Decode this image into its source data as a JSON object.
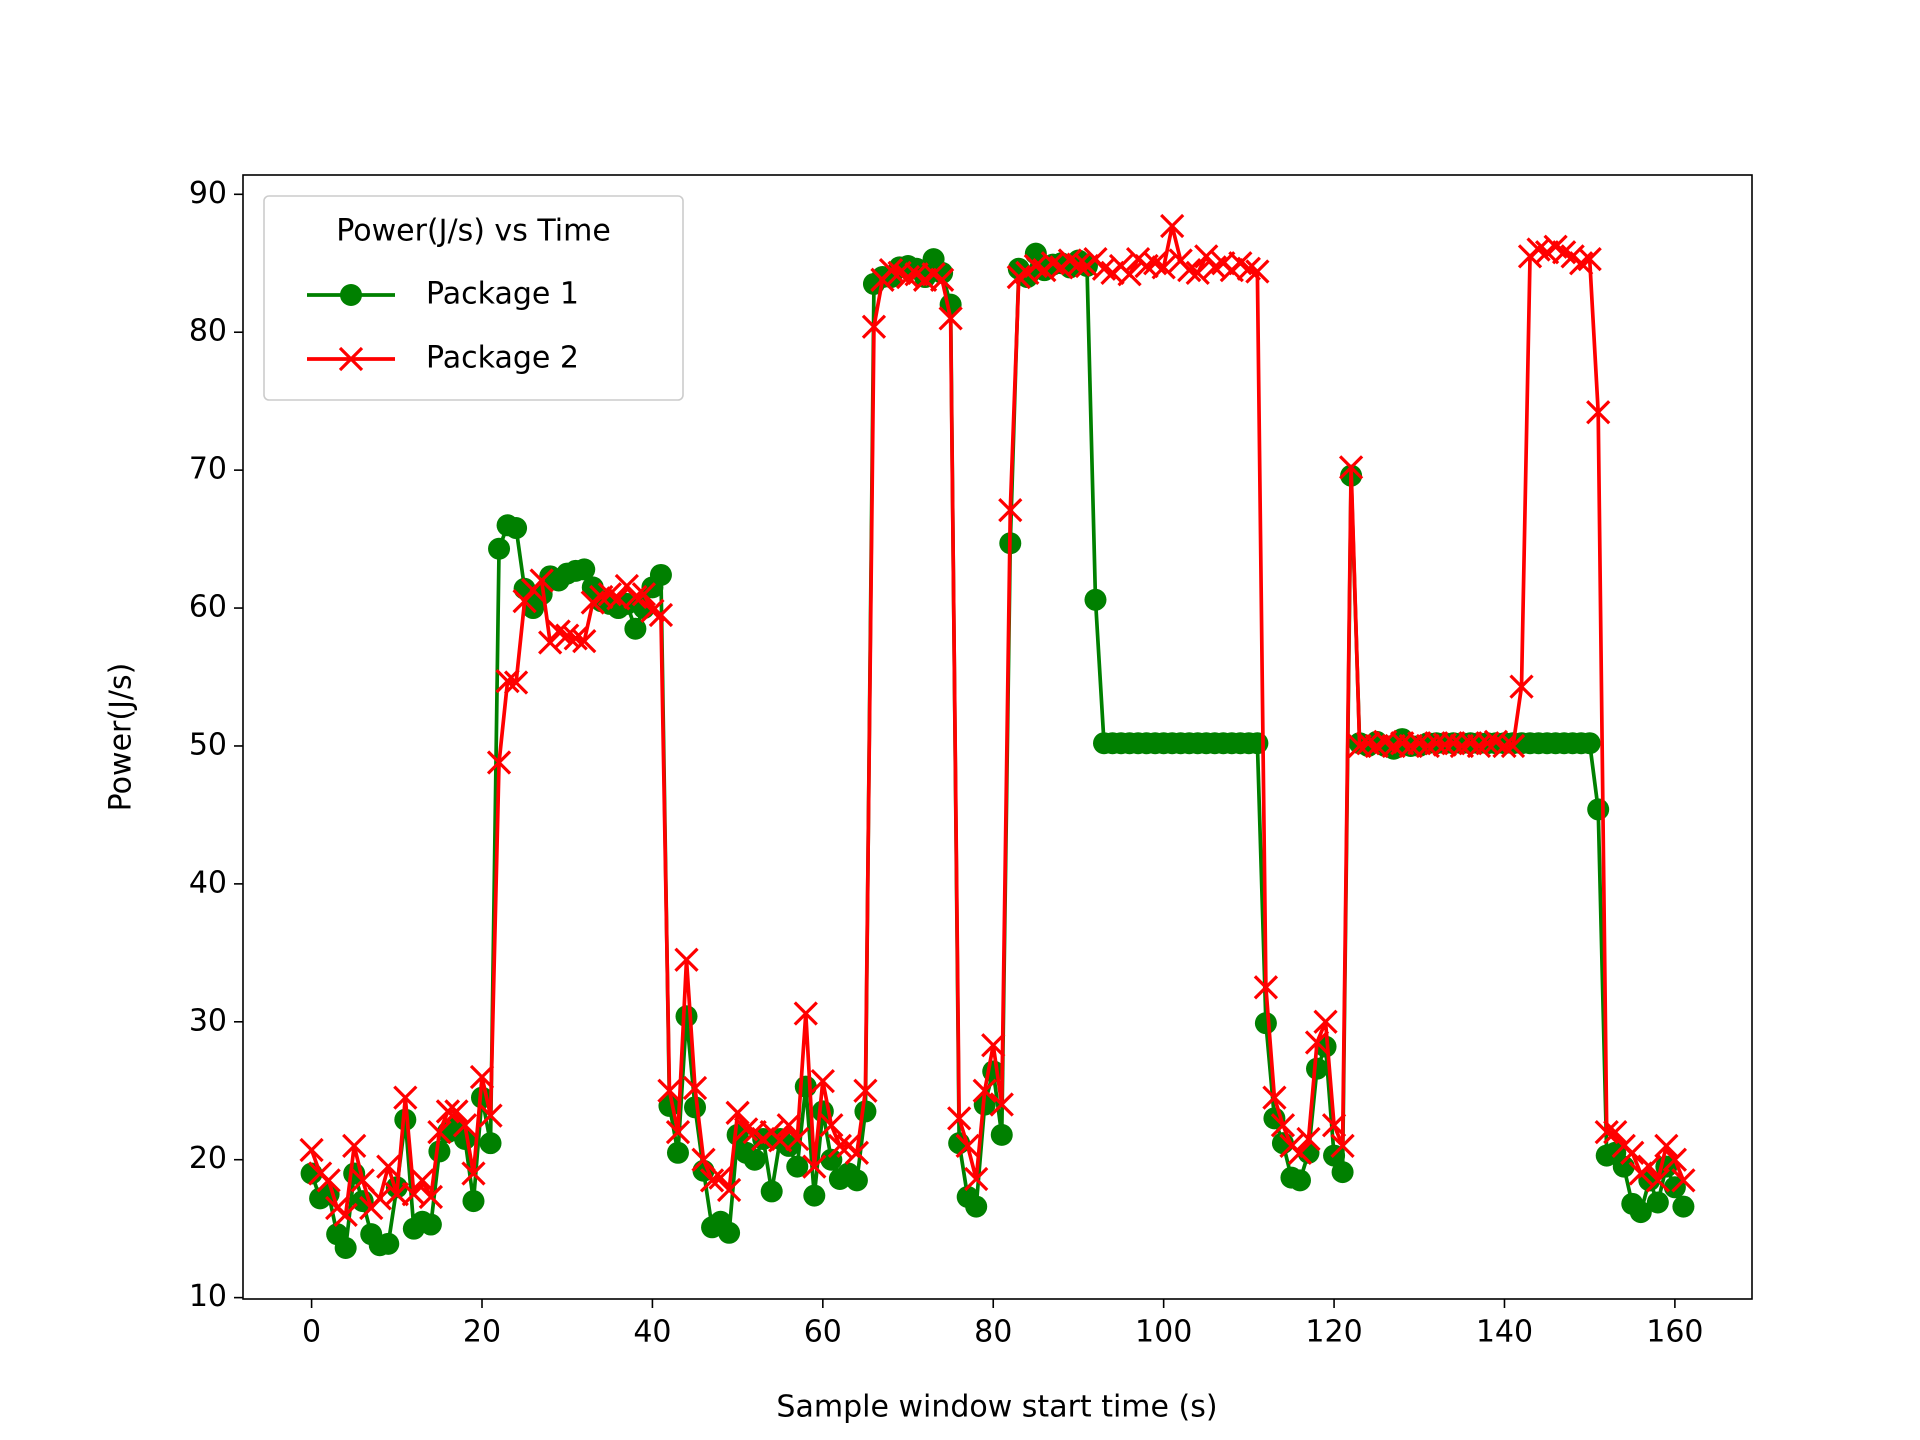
{
  "chart_data": {
    "type": "line",
    "xlabel": "Sample window start time (s)",
    "ylabel": "Power(J/s)",
    "legend_title": "Power(J/s) vs Time",
    "legend": "upper left",
    "xlim": [
      -8.05,
      169.05
    ],
    "ylim": [
      9.9,
      91.4
    ],
    "xticks": [
      0,
      20,
      40,
      60,
      80,
      100,
      120,
      140,
      160
    ],
    "yticks": [
      10,
      20,
      30,
      40,
      50,
      60,
      70,
      80,
      90
    ],
    "x": [
      0,
      1,
      2,
      3,
      4,
      5,
      6,
      7,
      8,
      9,
      10,
      11,
      12,
      13,
      14,
      15,
      16,
      17,
      18,
      19,
      20,
      21,
      22,
      23,
      24,
      25,
      26,
      27,
      28,
      29,
      30,
      31,
      32,
      33,
      34,
      35,
      36,
      37,
      38,
      39,
      40,
      41,
      42,
      43,
      44,
      45,
      46,
      47,
      48,
      49,
      50,
      51,
      52,
      53,
      54,
      55,
      56,
      57,
      58,
      59,
      60,
      61,
      62,
      63,
      64,
      65,
      66,
      67,
      68,
      69,
      70,
      71,
      72,
      73,
      74,
      75,
      76,
      77,
      78,
      79,
      80,
      81,
      82,
      83,
      84,
      85,
      86,
      87,
      88,
      89,
      90,
      91,
      92,
      93,
      94,
      95,
      96,
      97,
      98,
      99,
      100,
      101,
      102,
      103,
      104,
      105,
      106,
      107,
      108,
      109,
      110,
      111,
      112,
      113,
      114,
      115,
      116,
      117,
      118,
      119,
      120,
      121,
      122,
      123,
      124,
      125,
      126,
      127,
      128,
      129,
      130,
      131,
      132,
      133,
      134,
      135,
      136,
      137,
      138,
      139,
      140,
      141,
      142,
      143,
      144,
      145,
      146,
      147,
      148,
      149,
      150,
      151,
      152,
      153,
      154,
      155,
      156,
      157,
      158,
      159,
      160,
      161
    ],
    "series": [
      {
        "name": "Package 1",
        "color": "#008000",
        "marker": "circle",
        "values": [
          19,
          17.2,
          17.5,
          14.6,
          13.6,
          19,
          17,
          14.6,
          13.8,
          13.9,
          18,
          22.9,
          15,
          15.5,
          15.3,
          20.6,
          22,
          22.5,
          21.5,
          17,
          24.5,
          21.2,
          64.3,
          66,
          65.8,
          61.4,
          60,
          61,
          62.3,
          62,
          62.5,
          62.7,
          62.8,
          61.5,
          60.5,
          60.3,
          60,
          60.3,
          58.5,
          60,
          61.5,
          62.4,
          23.9,
          20.5,
          30.4,
          23.8,
          19.2,
          15.1,
          15.5,
          14.7,
          21.8,
          20.5,
          20,
          21.5,
          17.7,
          21.5,
          21,
          19.5,
          25.3,
          17.4,
          23.5,
          20,
          18.6,
          19,
          18.5,
          23.5,
          83.5,
          84,
          84,
          84.7,
          84.8,
          84.6,
          84,
          85.3,
          84.3,
          82,
          21.2,
          17.3,
          16.6,
          24,
          26.4,
          21.8,
          64.7,
          84.6,
          84,
          85.7,
          84.5,
          84.9,
          85,
          84.7,
          85.2,
          84.8,
          60.6,
          50.2,
          50.2,
          50.2,
          50.2,
          50.2,
          50.2,
          50.2,
          50.2,
          50.2,
          50.2,
          50.2,
          50.2,
          50.2,
          50.2,
          50.2,
          50.2,
          50.2,
          50.2,
          50.2,
          29.9,
          23,
          21.2,
          18.7,
          18.5,
          20.5,
          26.6,
          28.2,
          20.3,
          19.1,
          69.6,
          50.2,
          50,
          50.3,
          50,
          49.8,
          50.5,
          50,
          50,
          50.2,
          50.2,
          50.2,
          50.2,
          50.2,
          50.2,
          50.2,
          50.2,
          50.2,
          50.2,
          50.2,
          50.2,
          50.2,
          50.2,
          50.2,
          50.2,
          50.2,
          50.2,
          50.2,
          50.2,
          45.4,
          20.3,
          20.5,
          19.5,
          16.8,
          16.2,
          18.5,
          16.9,
          19.5,
          18,
          16.6
        ]
      },
      {
        "name": "Package 2",
        "color": "#ff0000",
        "marker": "x",
        "values": [
          20.7,
          19,
          18.5,
          16.5,
          16,
          21,
          18.5,
          16.5,
          17.2,
          19.5,
          17.5,
          24.5,
          17.5,
          18.5,
          17.3,
          22,
          23.5,
          23.5,
          22.5,
          19,
          26,
          23.2,
          48.8,
          54.7,
          54.6,
          60.5,
          61.3,
          62,
          57.5,
          58.3,
          58,
          57.8,
          57.6,
          60.4,
          60.8,
          61,
          60.7,
          61.6,
          60.8,
          61,
          59.8,
          59.5,
          25,
          22,
          34.5,
          25.2,
          20,
          18.5,
          18.7,
          17.8,
          23.4,
          22.2,
          22,
          21.5,
          22,
          21.4,
          22.5,
          21.5,
          30.6,
          19.5,
          25.7,
          22.5,
          21,
          21,
          20.5,
          25,
          80.4,
          83.8,
          84.5,
          84.3,
          84,
          84.2,
          83.8,
          84.2,
          83.8,
          81,
          23,
          21,
          18.6,
          25,
          28.3,
          24,
          67.1,
          84,
          84.3,
          84.8,
          84.5,
          85,
          84.7,
          85.2,
          84.9,
          84.8,
          85.3,
          84.6,
          84.3,
          84.8,
          84.2,
          85.3,
          84.8,
          85,
          84.7,
          87.7,
          85.2,
          84.5,
          84.3,
          85.5,
          84.7,
          85,
          84.5,
          85,
          84.6,
          84.4,
          32.5,
          24.5,
          22.5,
          21,
          20.5,
          21.5,
          28.5,
          30,
          22.5,
          21,
          70.2,
          50,
          50.2,
          50,
          50.3,
          50,
          50.2,
          50,
          50.2,
          50,
          50.2,
          50.1,
          50.2,
          50,
          50.2,
          50,
          50.2,
          50.3,
          50,
          50,
          54.3,
          85.5,
          86,
          85.8,
          86.2,
          85.8,
          85.5,
          85,
          85.3,
          74.2,
          22,
          22,
          21,
          20.5,
          19,
          19.5,
          18.5,
          21,
          20,
          18.5
        ]
      }
    ]
  }
}
